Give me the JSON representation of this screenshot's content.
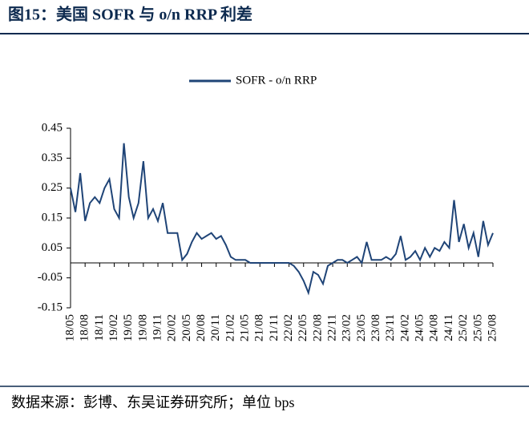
{
  "title": "图15：美国 SOFR 与 o/n RRP 利差",
  "source": "数据来源：彭博、东吴证券研究所；单位 bps",
  "chart_data": {
    "type": "line",
    "categories": [
      "18/05",
      null,
      null,
      "18/08",
      null,
      null,
      "18/11",
      null,
      null,
      "19/02",
      null,
      null,
      "19/05",
      null,
      null,
      "19/08",
      null,
      null,
      "19/11",
      null,
      null,
      "20/02",
      null,
      null,
      "20/05",
      null,
      null,
      "20/08",
      null,
      null,
      "20/11",
      null,
      null,
      "21/02",
      null,
      null,
      "21/05",
      null,
      null,
      "21/08",
      null,
      null,
      "21/11",
      null,
      null,
      "22/02",
      null,
      null,
      "22/05",
      null,
      null,
      "22/08",
      null,
      null,
      "22/11",
      null,
      null,
      "23/02",
      null,
      null,
      "23/05",
      null,
      null,
      "23/08",
      null,
      null,
      "23/11",
      null,
      null,
      "24/02",
      null,
      null,
      "24/05",
      null,
      null,
      "24/08",
      null,
      null,
      "24/11",
      null,
      null,
      "25/02",
      null,
      null,
      "25/05",
      null,
      null,
      "25/08"
    ],
    "series": [
      {
        "name": "SOFR - o/n RRP",
        "color": "#1f4477",
        "values": [
          0.25,
          0.17,
          0.3,
          0.14,
          0.2,
          0.22,
          0.2,
          0.25,
          0.28,
          0.18,
          0.15,
          0.4,
          0.22,
          0.15,
          0.2,
          0.34,
          0.15,
          0.18,
          0.14,
          0.2,
          0.1,
          0.1,
          0.1,
          0.01,
          0.03,
          0.07,
          0.1,
          0.08,
          0.09,
          0.1,
          0.08,
          0.09,
          0.06,
          0.02,
          0.01,
          0.01,
          0.01,
          0.0,
          0.0,
          0.0,
          0.0,
          0.0,
          0.0,
          0.0,
          0.0,
          0.0,
          -0.01,
          -0.03,
          -0.06,
          -0.1,
          -0.03,
          -0.04,
          -0.07,
          -0.01,
          0.0,
          0.01,
          0.01,
          0.0,
          0.01,
          0.02,
          0.0,
          0.07,
          0.01,
          0.01,
          0.01,
          0.02,
          0.01,
          0.03,
          0.09,
          0.01,
          0.02,
          0.04,
          0.01,
          0.05,
          0.02,
          0.05,
          0.04,
          0.07,
          0.05,
          0.21,
          0.07,
          0.13,
          0.05,
          0.1,
          0.02,
          0.14,
          0.06,
          0.1
        ]
      }
    ],
    "ylim": [
      -0.15,
      0.45
    ],
    "yticks": [
      0.45,
      0.35,
      0.25,
      0.15,
      0.05,
      -0.05,
      -0.15
    ],
    "legend": "top"
  }
}
